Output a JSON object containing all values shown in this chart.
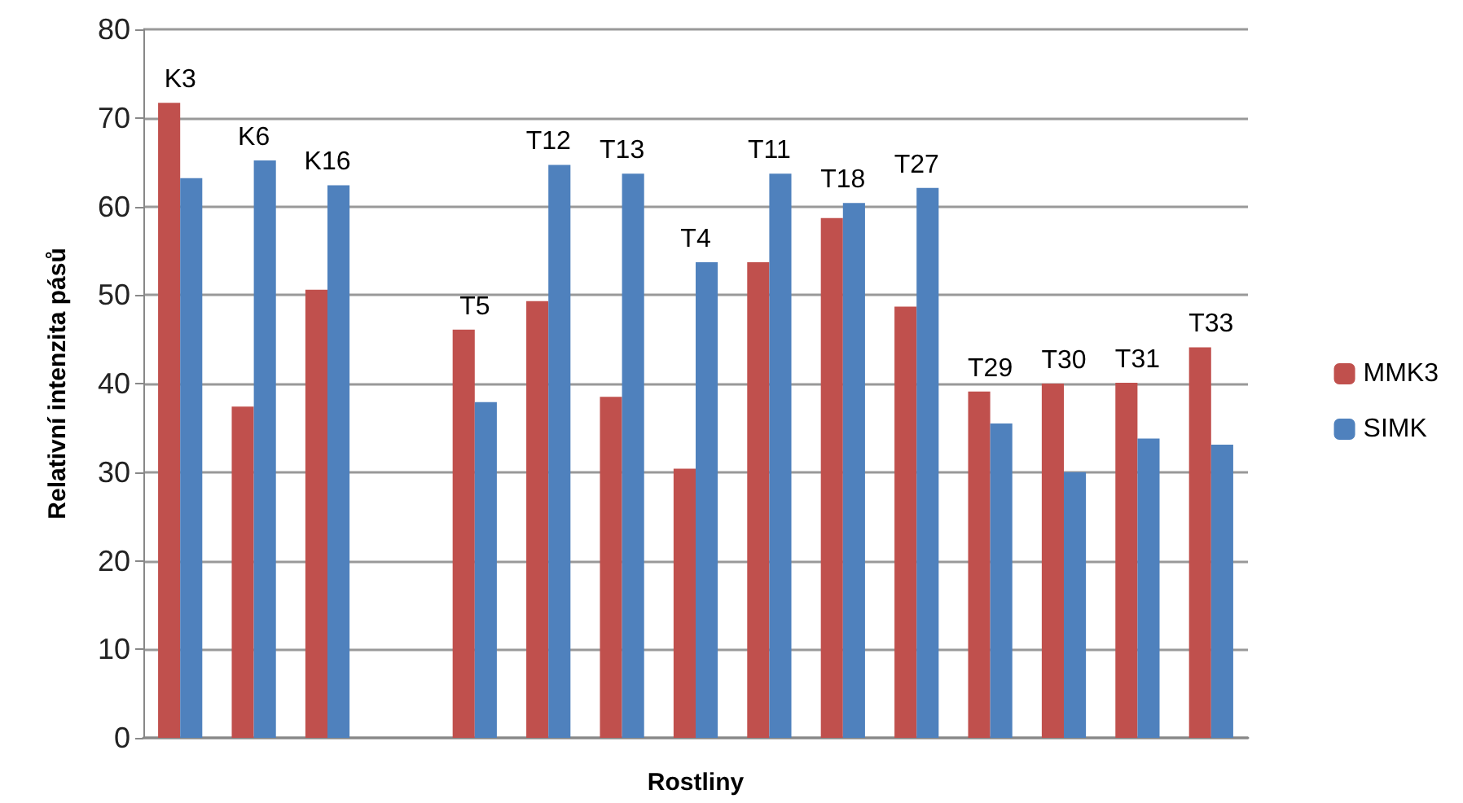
{
  "chart_data": {
    "type": "bar",
    "xlabel": "Rostliny",
    "ylabel": "Relativní intenzita pásů",
    "categories": [
      "K3",
      "K6",
      "K16",
      null,
      "T5",
      "T12",
      "T13",
      "T4",
      "T11",
      "T18",
      "T27",
      "T29",
      "T30",
      "T31",
      "T33"
    ],
    "series": [
      {
        "name": "MMK3",
        "color": "#c0504d",
        "values": [
          71.7,
          37.4,
          50.6,
          null,
          46.1,
          49.3,
          38.5,
          30.4,
          53.7,
          58.7,
          48.7,
          39.1,
          40.0,
          40.1,
          44.1
        ]
      },
      {
        "name": "SIMK",
        "color": "#4f81bd",
        "values": [
          63.2,
          65.2,
          62.4,
          null,
          37.9,
          64.7,
          63.7,
          53.7,
          63.7,
          60.4,
          62.1,
          35.5,
          30.0,
          33.8,
          33.1
        ]
      }
    ],
    "ylim": [
      0,
      80
    ],
    "yticks": [
      0,
      10,
      20,
      30,
      40,
      50,
      60,
      70,
      80
    ],
    "grid": "y",
    "legend": "right"
  }
}
